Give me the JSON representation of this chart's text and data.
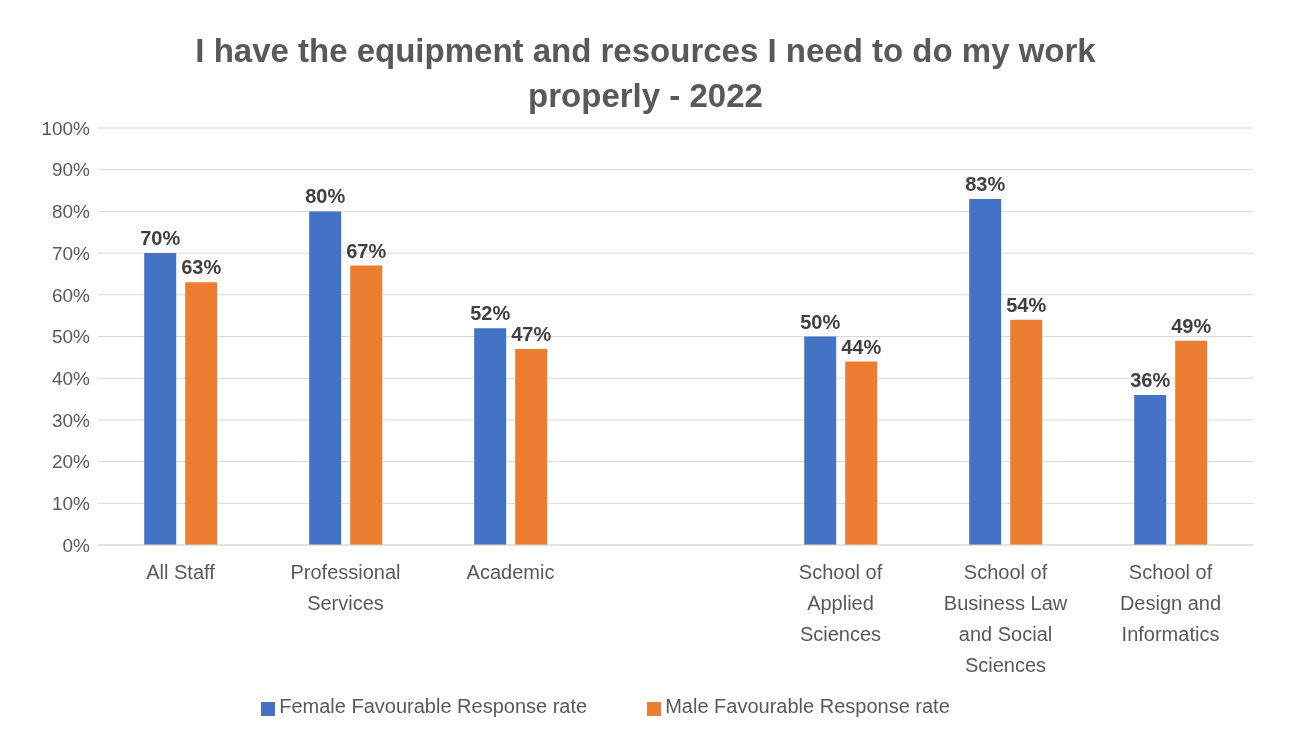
{
  "chart_data": {
    "type": "bar",
    "title": "I have the equipment and resources I need to do my work properly - 2022",
    "categories": [
      "All Staff",
      "Professional Services",
      "Academic",
      null,
      "School of Applied Sciences",
      "School of Business Law and Social Sciences",
      "School of Design and Informatics"
    ],
    "series": [
      {
        "name": "Female Favourable Response rate",
        "color": "#4472c4",
        "values": [
          70,
          80,
          52,
          null,
          50,
          83,
          36
        ],
        "value_labels": [
          "70%",
          "80%",
          "52%",
          null,
          "50%",
          "83%",
          "36%"
        ]
      },
      {
        "name": "Male Favourable Response rate",
        "color": "#ed7d31",
        "values": [
          63,
          67,
          47,
          null,
          44,
          54,
          49
        ],
        "value_labels": [
          "63%",
          "67%",
          "47%",
          null,
          "44%",
          "54%",
          "49%"
        ]
      }
    ],
    "ylim": [
      0,
      100
    ],
    "yticks": [
      {
        "value": 0,
        "label": "0%"
      },
      {
        "value": 10,
        "label": "10%"
      },
      {
        "value": 20,
        "label": "20%"
      },
      {
        "value": 30,
        "label": "30%"
      },
      {
        "value": 40,
        "label": "40%"
      },
      {
        "value": 50,
        "label": "50%"
      },
      {
        "value": 60,
        "label": "60%"
      },
      {
        "value": 70,
        "label": "70%"
      },
      {
        "value": 80,
        "label": "80%"
      },
      {
        "value": 90,
        "label": "90%"
      },
      {
        "value": 100,
        "label": "100%"
      }
    ],
    "grid": "y",
    "legend": "bottom"
  }
}
